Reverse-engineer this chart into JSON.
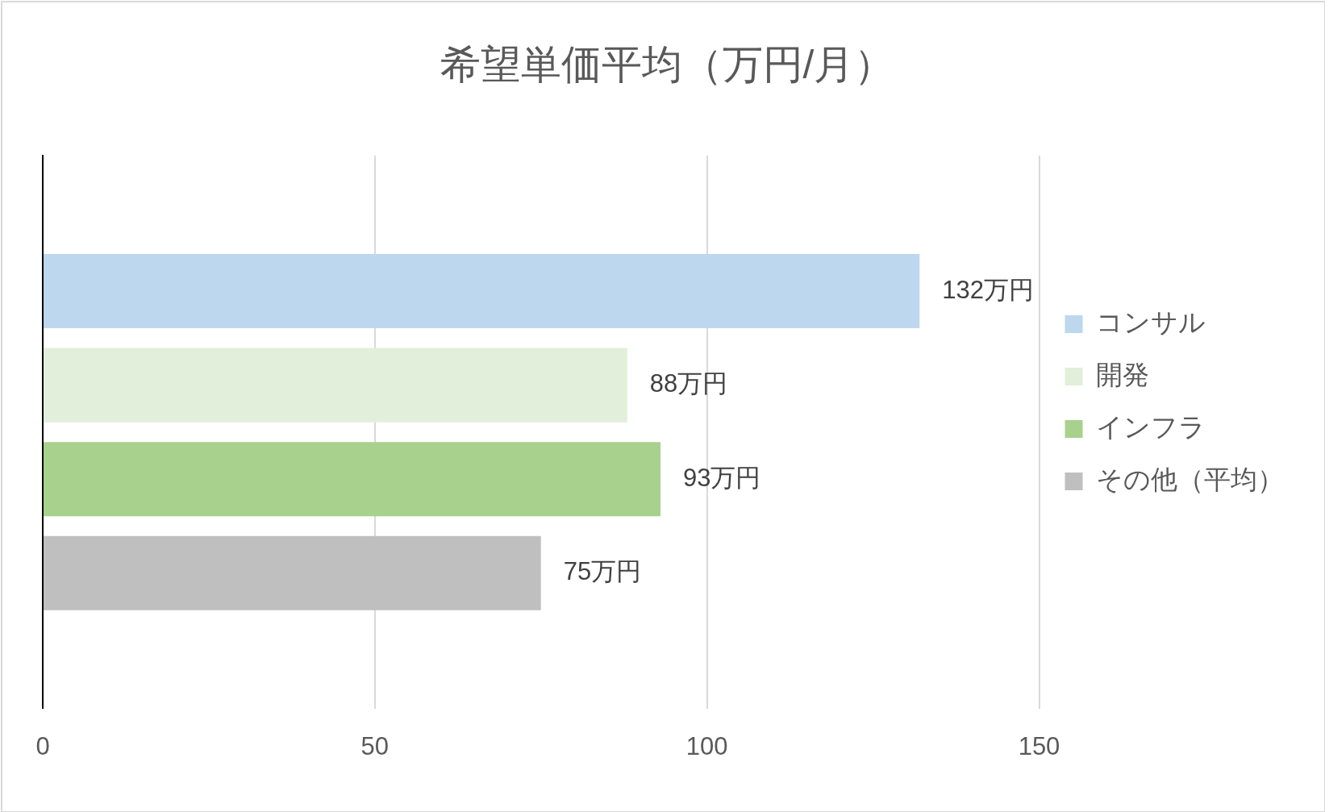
{
  "chart_data": {
    "type": "bar",
    "orientation": "horizontal",
    "title": "希望単価平均（万円/月）",
    "categories": [
      null
    ],
    "series": [
      {
        "name": "コンサル",
        "color": "#bdd7ee",
        "values": [
          132
        ],
        "value_labels": [
          "132万円"
        ]
      },
      {
        "name": "開発",
        "color": "#e2efda",
        "values": [
          88
        ],
        "value_labels": [
          "88万円"
        ]
      },
      {
        "name": "インフラ",
        "color": "#a9d18e",
        "values": [
          93
        ],
        "value_labels": [
          "93万円"
        ]
      },
      {
        "name": "その他（平均）",
        "color": "#bfbfbf",
        "values": [
          75
        ],
        "value_labels": [
          "75万円"
        ]
      }
    ],
    "xlim": [
      0,
      150
    ],
    "xticks": [
      0,
      50,
      100,
      150
    ],
    "grid": "x",
    "legend": "right"
  }
}
